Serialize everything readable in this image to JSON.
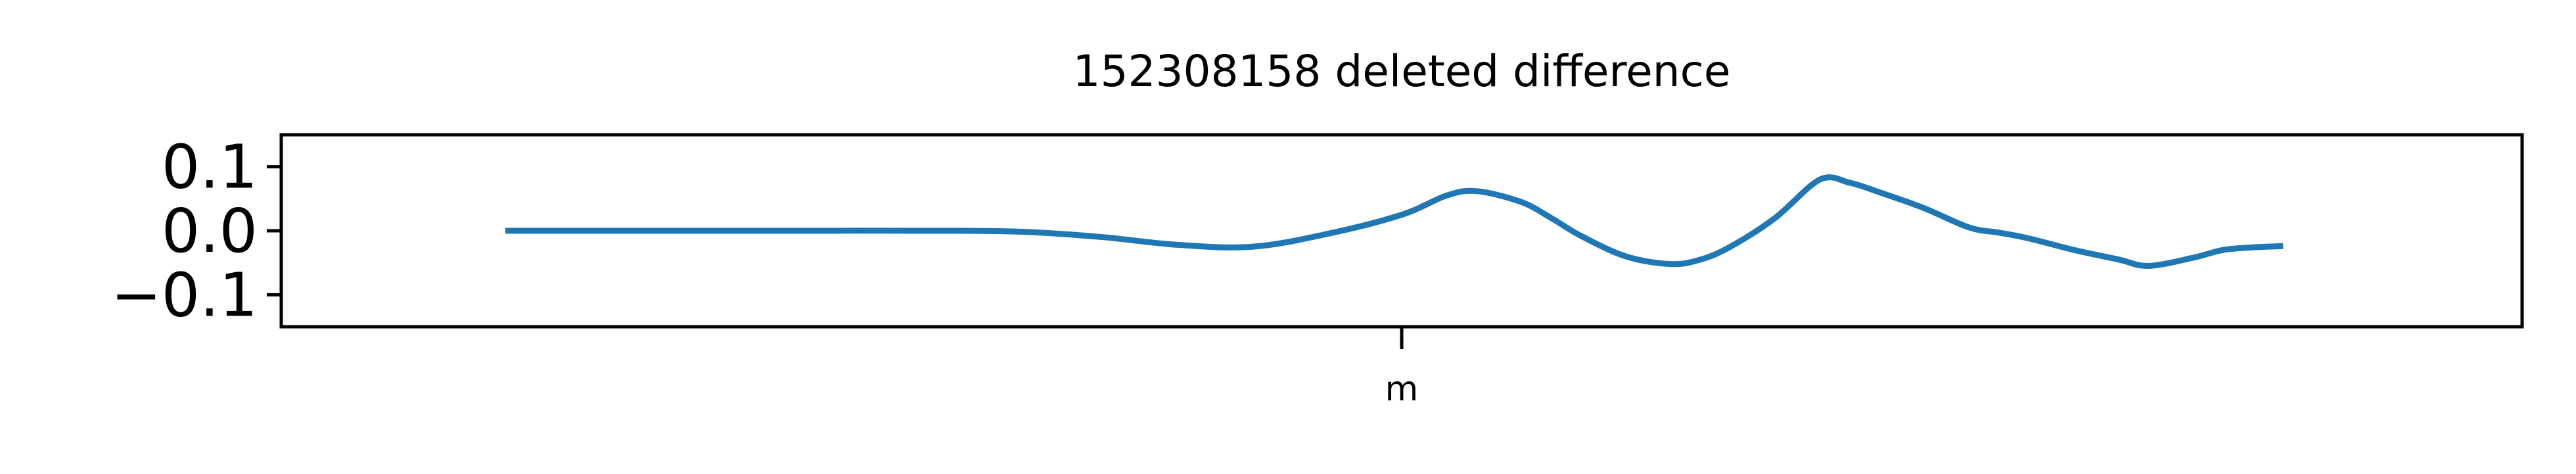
{
  "chart_data": {
    "type": "line",
    "title": "152308158 deleted difference",
    "xlabel": "",
    "ylabel": "",
    "x_tick_labels": [
      "m"
    ],
    "y_ticks": [
      0.1,
      0.0,
      -0.1
    ],
    "y_tick_labels": [
      "0.1",
      "0.0",
      "−0.1"
    ],
    "ylim": [
      -0.15,
      0.15
    ],
    "xlim": [
      -0.25,
      1.25
    ],
    "grid": false,
    "series": [
      {
        "color": "#1f77b4",
        "x": [
          -0.1,
          0.0,
          0.1,
          0.2,
          0.25,
          0.3,
          0.35,
          0.4,
          0.45,
          0.5,
          0.53,
          0.55,
          0.58,
          0.6,
          0.62,
          0.65,
          0.68,
          0.7,
          0.72,
          0.75,
          0.78,
          0.8,
          0.82,
          0.85,
          0.88,
          0.9,
          0.92,
          0.95,
          0.98,
          1.0,
          1.03,
          1.05,
          1.07,
          1.09
        ],
        "y": [
          0.0,
          0.0,
          0.0,
          0.0,
          -0.002,
          -0.01,
          -0.022,
          -0.025,
          -0.005,
          0.025,
          0.055,
          0.062,
          0.045,
          0.02,
          -0.008,
          -0.04,
          -0.052,
          -0.045,
          -0.025,
          0.02,
          0.08,
          0.075,
          0.06,
          0.035,
          0.005,
          -0.003,
          -0.012,
          -0.03,
          -0.045,
          -0.055,
          -0.042,
          -0.03,
          -0.026,
          -0.024
        ]
      }
    ]
  }
}
